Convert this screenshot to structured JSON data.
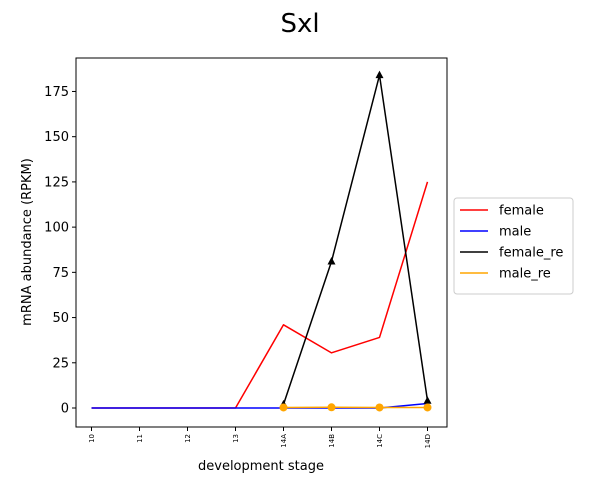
{
  "chart_data": {
    "type": "line",
    "title": "Sxl",
    "xlabel": "development stage",
    "ylabel": "mRNA abundance (RPKM)",
    "categories": [
      "10",
      "11",
      "12",
      "13",
      "14A",
      "14B",
      "14C",
      "14D"
    ],
    "ylim": [
      -10.5,
      193.5
    ],
    "yticks": [
      0,
      25,
      50,
      75,
      100,
      125,
      150,
      175
    ],
    "grid": false,
    "legend_position": "center-right outside",
    "series": [
      {
        "name": "female",
        "color": "#ff0000",
        "marker": "none",
        "x": [
          "10",
          "11",
          "12",
          "13",
          "14A",
          "14B",
          "14C",
          "14D"
        ],
        "values": [
          0,
          0,
          0,
          0,
          46,
          30.5,
          39,
          125
        ]
      },
      {
        "name": "male",
        "color": "#0000ff",
        "marker": "none",
        "x": [
          "10",
          "11",
          "12",
          "13",
          "14A",
          "14B",
          "14C",
          "14D"
        ],
        "values": [
          0,
          0,
          0,
          0,
          0,
          0,
          0,
          2.5
        ]
      },
      {
        "name": "female_re",
        "color": "#000000",
        "marker": "triangle",
        "x": [
          "14A",
          "14B",
          "14C",
          "14D"
        ],
        "values": [
          2,
          81,
          184,
          4
        ]
      },
      {
        "name": "male_re",
        "color": "#ffa500",
        "marker": "circle",
        "x": [
          "14A",
          "14B",
          "14C",
          "14D"
        ],
        "values": [
          0.3,
          0.4,
          0.3,
          0.3
        ]
      }
    ]
  }
}
